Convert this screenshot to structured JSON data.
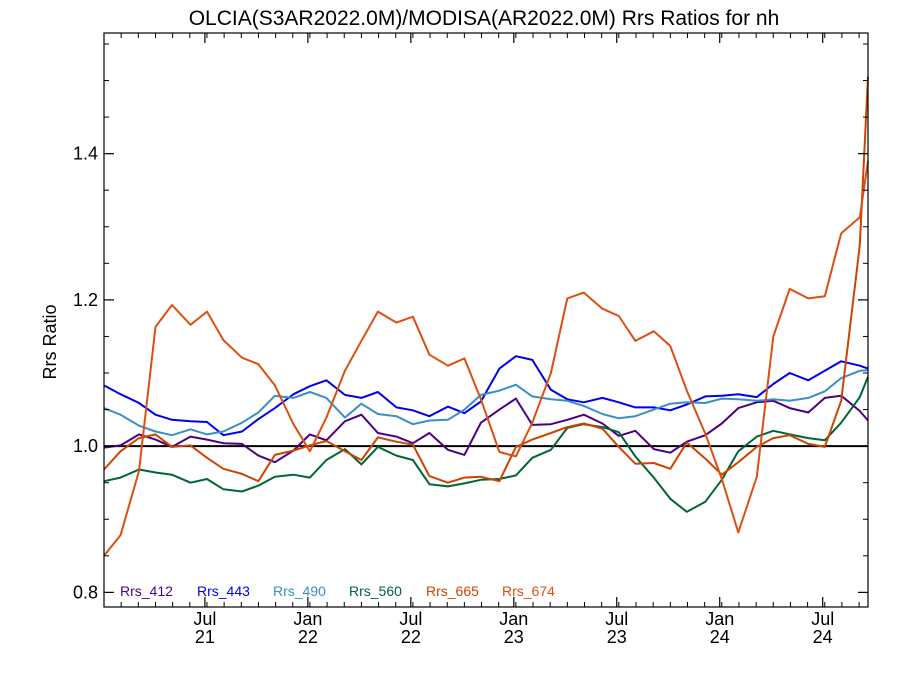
{
  "chart_data": {
    "type": "line",
    "title": "OLCIA(S3AR2022.0M)/MODISA(AR2022.0M)  Rrs Ratios for nh",
    "xlabel": "",
    "ylabel": "Rrs Ratio",
    "xlim": [
      2021.0,
      2024.71
    ],
    "ylim": [
      0.78,
      1.565
    ],
    "yticks": [
      0.8,
      1.0,
      1.2,
      1.4
    ],
    "ytick_labels": [
      "0.8",
      "1.0",
      "1.2",
      "1.4"
    ],
    "xticks": [
      {
        "x": 2021.49,
        "line1": "Jul",
        "line2": "21"
      },
      {
        "x": 2021.99,
        "line1": "Jan",
        "line2": "22"
      },
      {
        "x": 2022.49,
        "line1": "Jul",
        "line2": "22"
      },
      {
        "x": 2022.99,
        "line1": "Jan",
        "line2": "23"
      },
      {
        "x": 2023.49,
        "line1": "Jul",
        "line2": "23"
      },
      {
        "x": 2023.99,
        "line1": "Jan",
        "line2": "24"
      },
      {
        "x": 2024.49,
        "line1": "Jul",
        "line2": "24"
      }
    ],
    "reference_line": 1.0,
    "grid": false,
    "legend_position": "bottom-left",
    "x": [
      2021.0,
      2021.08,
      2021.17,
      2021.25,
      2021.33,
      2021.42,
      2021.5,
      2021.58,
      2021.67,
      2021.75,
      2021.83,
      2021.92,
      2022.0,
      2022.08,
      2022.17,
      2022.25,
      2022.33,
      2022.42,
      2022.5,
      2022.58,
      2022.67,
      2022.75,
      2022.83,
      2022.92,
      2023.0,
      2023.08,
      2023.17,
      2023.25,
      2023.33,
      2023.42,
      2023.5,
      2023.58,
      2023.67,
      2023.75,
      2023.83,
      2023.92,
      2024.0,
      2024.08,
      2024.17,
      2024.25,
      2024.33,
      2024.42,
      2024.5,
      2024.58,
      2024.67,
      2024.71
    ],
    "series": [
      {
        "name": "Rrs_412",
        "color": "#4b0082",
        "values": [
          0.998,
          1.001,
          1.016,
          1.009,
          0.999,
          1.013,
          1.009,
          1.004,
          1.003,
          0.987,
          0.978,
          0.994,
          1.016,
          1.008,
          1.034,
          1.043,
          1.018,
          1.013,
          1.004,
          1.018,
          0.995,
          0.988,
          1.032,
          1.05,
          1.065,
          1.029,
          1.03,
          1.036,
          1.043,
          1.031,
          1.014,
          1.021,
          0.996,
          0.991,
          1.006,
          1.015,
          1.031,
          1.052,
          1.06,
          1.062,
          1.052,
          1.046,
          1.066,
          1.069,
          1.048,
          1.035
        ]
      },
      {
        "name": "Rrs_443",
        "color": "#0000ee",
        "values": [
          1.083,
          1.071,
          1.059,
          1.043,
          1.036,
          1.034,
          1.033,
          1.015,
          1.02,
          1.037,
          1.052,
          1.071,
          1.082,
          1.09,
          1.07,
          1.066,
          1.074,
          1.053,
          1.049,
          1.041,
          1.054,
          1.045,
          1.061,
          1.106,
          1.123,
          1.118,
          1.077,
          1.064,
          1.06,
          1.066,
          1.06,
          1.053,
          1.053,
          1.049,
          1.057,
          1.068,
          1.069,
          1.071,
          1.067,
          1.085,
          1.1,
          1.09,
          1.103,
          1.116,
          1.11,
          1.106
        ]
      },
      {
        "name": "Rrs_490",
        "color": "#3a8fc4",
        "values": [
          1.052,
          1.043,
          1.028,
          1.02,
          1.015,
          1.023,
          1.016,
          1.02,
          1.032,
          1.046,
          1.069,
          1.066,
          1.074,
          1.066,
          1.039,
          1.058,
          1.044,
          1.041,
          1.03,
          1.035,
          1.036,
          1.05,
          1.07,
          1.076,
          1.084,
          1.068,
          1.064,
          1.062,
          1.055,
          1.044,
          1.038,
          1.041,
          1.05,
          1.058,
          1.06,
          1.059,
          1.065,
          1.064,
          1.062,
          1.064,
          1.062,
          1.066,
          1.075,
          1.093,
          1.103,
          1.104
        ]
      },
      {
        "name": "Rrs_560",
        "color": "#006633",
        "values": [
          0.952,
          0.957,
          0.968,
          0.964,
          0.961,
          0.95,
          0.955,
          0.941,
          0.938,
          0.946,
          0.958,
          0.961,
          0.957,
          0.981,
          0.996,
          0.975,
          0.999,
          0.987,
          0.981,
          0.948,
          0.945,
          0.949,
          0.954,
          0.955,
          0.96,
          0.984,
          0.995,
          1.025,
          1.03,
          1.026,
          1.019,
          0.986,
          0.957,
          0.928,
          0.91,
          0.924,
          0.954,
          0.993,
          1.013,
          1.021,
          1.016,
          1.011,
          1.008,
          1.032,
          1.067,
          1.095
        ]
      },
      {
        "name": "Rrs_665",
        "color": "#cc4400",
        "values": [
          0.968,
          0.993,
          1.011,
          1.016,
          0.999,
          1.001,
          0.984,
          0.969,
          0.962,
          0.952,
          0.988,
          0.994,
          1.001,
          1.007,
          0.993,
          0.981,
          1.012,
          1.006,
          1.002,
          0.959,
          0.95,
          0.957,
          0.958,
          0.952,
          0.999,
          1.009,
          1.018,
          1.026,
          1.031,
          1.024,
          0.999,
          0.976,
          0.977,
          0.969,
          1.005,
          0.983,
          0.961,
          0.978,
          0.999,
          1.011,
          1.015,
          1.003,
          0.999,
          1.062,
          1.275,
          1.505
        ]
      },
      {
        "name": "Rrs_674",
        "color": "#dd4f10",
        "values": [
          0.85,
          0.878,
          0.966,
          1.163,
          1.193,
          1.166,
          1.184,
          1.145,
          1.121,
          1.112,
          1.083,
          1.03,
          0.993,
          1.039,
          1.103,
          1.144,
          1.184,
          1.169,
          1.177,
          1.125,
          1.11,
          1.12,
          1.064,
          0.992,
          0.986,
          1.032,
          1.1,
          1.202,
          1.21,
          1.188,
          1.178,
          1.144,
          1.157,
          1.137,
          1.076,
          1.017,
          0.955,
          0.882,
          0.958,
          1.15,
          1.215,
          1.202,
          1.205,
          1.291,
          1.313,
          1.39
        ]
      }
    ]
  }
}
